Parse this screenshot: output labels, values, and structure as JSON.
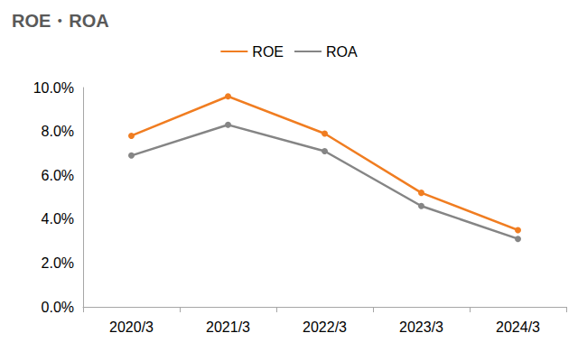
{
  "chart_data": {
    "type": "line",
    "title": "ROE・ROA",
    "categories": [
      "2020/3",
      "2021/3",
      "2022/3",
      "2023/3",
      "2024/3"
    ],
    "series": [
      {
        "name": "ROE",
        "color": "#f07d21",
        "values": [
          7.8,
          9.6,
          7.9,
          5.2,
          3.5
        ]
      },
      {
        "name": "ROA",
        "color": "#858585",
        "values": [
          6.9,
          8.3,
          7.1,
          4.6,
          3.1
        ]
      }
    ],
    "ylim": [
      0,
      10
    ],
    "yticks": [
      {
        "value": 0,
        "label": "0.0%"
      },
      {
        "value": 2,
        "label": "2.0%"
      },
      {
        "value": 4,
        "label": "4.0%"
      },
      {
        "value": 6,
        "label": "6.0%"
      },
      {
        "value": 8,
        "label": "8.0%"
      },
      {
        "value": 10,
        "label": "10.0%"
      }
    ],
    "grid": false,
    "legend": "top",
    "marker": "circle"
  }
}
